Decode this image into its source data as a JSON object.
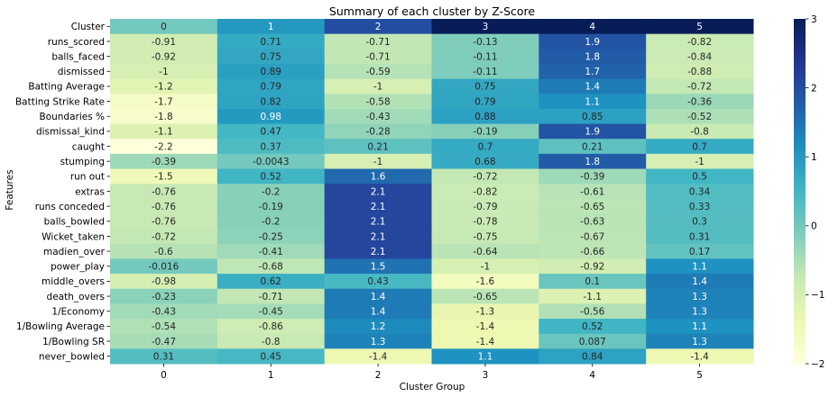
{
  "chart_data": {
    "type": "heatmap",
    "title": "Summary of each cluster by Z-Score",
    "xlabel": "Cluster Group",
    "ylabel": "Features",
    "x_categories": [
      "0",
      "1",
      "2",
      "3",
      "4",
      "5"
    ],
    "rows": [
      {
        "label": "Cluster",
        "values": [
          0,
          1,
          2,
          3,
          4,
          5
        ]
      },
      {
        "label": "runs_scored",
        "values": [
          -0.91,
          0.71,
          -0.71,
          -0.13,
          1.9,
          -0.82
        ]
      },
      {
        "label": "balls_faced",
        "values": [
          -0.92,
          0.75,
          -0.71,
          -0.11,
          1.8,
          -0.84
        ]
      },
      {
        "label": "dismissed",
        "values": [
          -1,
          0.89,
          -0.59,
          -0.11,
          1.7,
          -0.88
        ]
      },
      {
        "label": "Batting Average",
        "values": [
          -1.2,
          0.79,
          -1,
          0.75,
          1.4,
          -0.72
        ]
      },
      {
        "label": "Batting Strike Rate",
        "values": [
          -1.7,
          0.82,
          -0.58,
          0.79,
          1.1,
          -0.36
        ]
      },
      {
        "label": "Boundaries %",
        "values": [
          -1.8,
          0.98,
          -0.43,
          0.88,
          0.85,
          -0.52
        ]
      },
      {
        "label": "dismissal_kind",
        "values": [
          -1.1,
          0.47,
          -0.28,
          -0.19,
          1.9,
          -0.8
        ]
      },
      {
        "label": "caught",
        "values": [
          -2.2,
          0.37,
          0.21,
          0.7,
          0.21,
          0.7
        ]
      },
      {
        "label": "stumping",
        "values": [
          -0.39,
          -0.0043,
          -1,
          0.68,
          1.8,
          -1
        ]
      },
      {
        "label": "run out",
        "values": [
          -1.5,
          0.52,
          1.6,
          -0.72,
          -0.39,
          0.5
        ]
      },
      {
        "label": "extras",
        "values": [
          -0.76,
          -0.2,
          2.1,
          -0.82,
          -0.61,
          0.34
        ]
      },
      {
        "label": "runs conceded",
        "values": [
          -0.76,
          -0.19,
          2.1,
          -0.79,
          -0.65,
          0.33
        ]
      },
      {
        "label": "balls_bowled",
        "values": [
          -0.76,
          -0.2,
          2.1,
          -0.78,
          -0.63,
          0.3
        ]
      },
      {
        "label": "Wicket_taken",
        "values": [
          -0.72,
          -0.25,
          2.1,
          -0.75,
          -0.67,
          0.31
        ]
      },
      {
        "label": "madien_over",
        "values": [
          -0.6,
          -0.41,
          2.1,
          -0.64,
          -0.66,
          0.17
        ]
      },
      {
        "label": "power_play",
        "values": [
          -0.016,
          -0.68,
          1.5,
          -1,
          -0.92,
          1.1
        ]
      },
      {
        "label": "middle_overs",
        "values": [
          -0.98,
          0.62,
          0.43,
          -1.6,
          0.1,
          1.4
        ]
      },
      {
        "label": "death_overs",
        "values": [
          -0.23,
          -0.71,
          1.4,
          -0.65,
          -1.1,
          1.3
        ]
      },
      {
        "label": "1/Economy",
        "values": [
          -0.43,
          -0.45,
          1.4,
          -1.3,
          -0.56,
          1.3
        ]
      },
      {
        "label": "1/Bowling Average",
        "values": [
          -0.54,
          -0.86,
          1.2,
          -1.4,
          0.52,
          1.1
        ]
      },
      {
        "label": "1/Bowling SR",
        "values": [
          -0.47,
          -0.8,
          1.3,
          -1.4,
          0.087,
          1.3
        ]
      },
      {
        "label": "never_bowled",
        "values": [
          0.31,
          0.45,
          -1.4,
          1.1,
          0.84,
          -1.4
        ]
      }
    ],
    "colorscale": "YlGnBu",
    "vmin": -2,
    "vmax": 3,
    "colorbar_ticks": [
      "−2",
      "−1",
      "0",
      "1",
      "2",
      "3"
    ],
    "annotate": true,
    "grid": false,
    "legend": "colorbar-right"
  }
}
